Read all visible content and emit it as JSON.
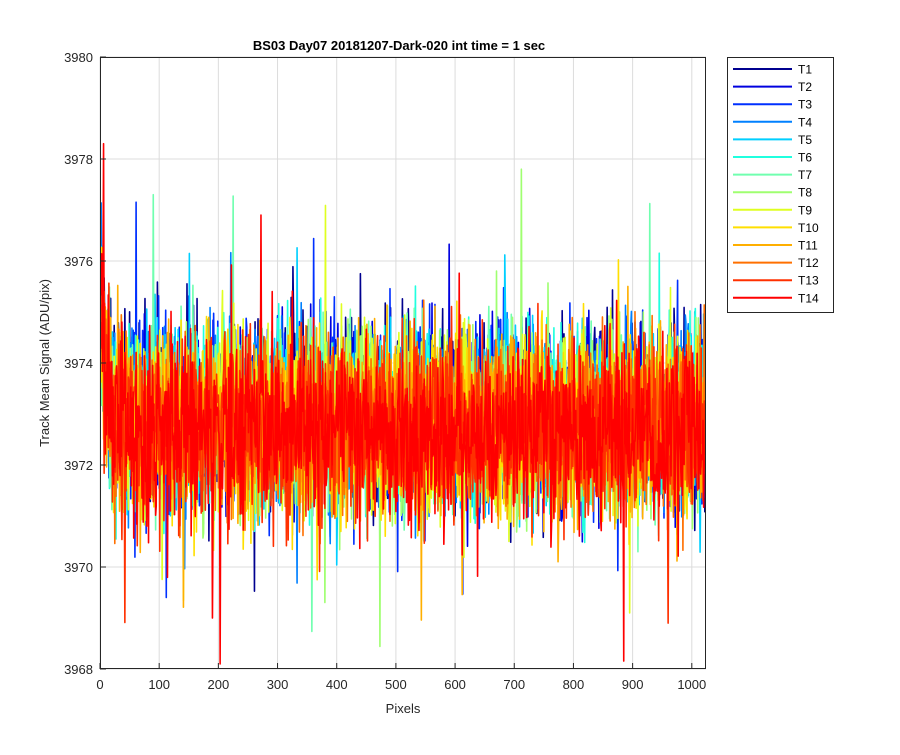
{
  "chart_data": {
    "type": "line",
    "title": "BS03 Day07 20181207-Dark-020 int time = 1 sec",
    "xlabel": "Pixels",
    "ylabel": "Track Mean Signal (ADU/pix)",
    "xlim": [
      0,
      1024
    ],
    "ylim": [
      3968,
      3980
    ],
    "xticks": [
      0,
      100,
      200,
      300,
      400,
      500,
      600,
      700,
      800,
      900,
      1000
    ],
    "yticks": [
      3968,
      3970,
      3972,
      3974,
      3976,
      3978,
      3980
    ],
    "grid": true,
    "legend_position": "outside-right",
    "series_summary": {
      "points_per_series": 1024,
      "x_start": 1,
      "x_end": 1024,
      "typical_mean": 3972.9,
      "typical_band": [
        3971.0,
        3975.0
      ],
      "overall_min": 3968.1,
      "overall_max": 3978.3,
      "early_pixel_elevation": "signal starts higher (~3975) over the first ~20 pixels and settles near 3972.9"
    },
    "series": [
      {
        "name": "T1",
        "color": "#00008f",
        "mean": 3973.1
      },
      {
        "name": "T2",
        "color": "#0000df",
        "mean": 3973.0
      },
      {
        "name": "T3",
        "color": "#0030ff",
        "mean": 3973.0
      },
      {
        "name": "T4",
        "color": "#0080ff",
        "mean": 3972.9
      },
      {
        "name": "T5",
        "color": "#00cfff",
        "mean": 3972.9
      },
      {
        "name": "T6",
        "color": "#20ffdf",
        "mean": 3972.9
      },
      {
        "name": "T7",
        "color": "#70ffaf",
        "mean": 3972.9
      },
      {
        "name": "T8",
        "color": "#9fff70",
        "mean": 3972.8
      },
      {
        "name": "T9",
        "color": "#dfff20",
        "mean": 3972.8
      },
      {
        "name": "T10",
        "color": "#ffdf00",
        "mean": 3972.8
      },
      {
        "name": "T11",
        "color": "#ffaf00",
        "mean": 3972.8
      },
      {
        "name": "T12",
        "color": "#ff7000",
        "mean": 3972.8
      },
      {
        "name": "T13",
        "color": "#ff3000",
        "mean": 3972.7
      },
      {
        "name": "T14",
        "color": "#ff0000",
        "mean": 3972.7
      }
    ],
    "spikes": [
      {
        "series": "T14",
        "x": 6,
        "y": 3978.3
      },
      {
        "series": "T8",
        "x": 712,
        "y": 3977.8
      },
      {
        "series": "T7",
        "x": 90,
        "y": 3977.3
      },
      {
        "series": "T14",
        "x": 272,
        "y": 3976.9
      },
      {
        "series": "T14",
        "x": 203,
        "y": 3968.1
      },
      {
        "series": "T14",
        "x": 190,
        "y": 3969.0
      },
      {
        "series": "T13",
        "x": 960,
        "y": 3968.9
      },
      {
        "series": "T9",
        "x": 895,
        "y": 3969.1
      }
    ]
  }
}
